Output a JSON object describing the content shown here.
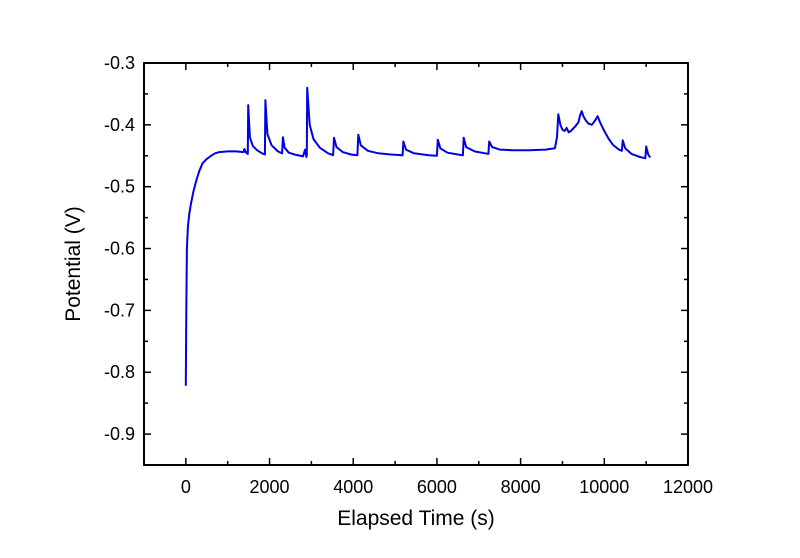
{
  "chart_data": {
    "type": "line",
    "title": "",
    "xlabel": "Elapsed Time (s)",
    "ylabel": "Potential (V)",
    "xlim": [
      -1000,
      12000
    ],
    "ylim": [
      -0.95,
      -0.3
    ],
    "x_ticks": [
      0,
      2000,
      4000,
      6000,
      8000,
      10000,
      12000
    ],
    "x_tick_labels": [
      "0",
      "2000",
      "4000",
      "6000",
      "8000",
      "10000",
      "12000"
    ],
    "y_ticks": [
      -0.3,
      -0.4,
      -0.5,
      -0.6,
      -0.7,
      -0.8,
      -0.9
    ],
    "y_tick_labels": [
      "-0.3",
      "-0.4",
      "-0.5",
      "-0.6",
      "-0.7",
      "-0.8",
      "-0.9"
    ],
    "grid": false,
    "series": [
      {
        "color": "#0000e0",
        "points": [
          [
            0,
            -0.822
          ],
          [
            10,
            -0.7
          ],
          [
            25,
            -0.6
          ],
          [
            50,
            -0.565
          ],
          [
            80,
            -0.545
          ],
          [
            120,
            -0.528
          ],
          [
            180,
            -0.508
          ],
          [
            250,
            -0.49
          ],
          [
            320,
            -0.475
          ],
          [
            400,
            -0.462
          ],
          [
            500,
            -0.455
          ],
          [
            600,
            -0.45
          ],
          [
            700,
            -0.446
          ],
          [
            800,
            -0.444
          ],
          [
            1000,
            -0.443
          ],
          [
            1200,
            -0.443
          ],
          [
            1380,
            -0.444
          ],
          [
            1400,
            -0.439
          ],
          [
            1440,
            -0.445
          ],
          [
            1480,
            -0.447
          ],
          [
            1490,
            -0.368
          ],
          [
            1530,
            -0.42
          ],
          [
            1600,
            -0.434
          ],
          [
            1700,
            -0.441
          ],
          [
            1820,
            -0.446
          ],
          [
            1890,
            -0.448
          ],
          [
            1900,
            -0.36
          ],
          [
            1950,
            -0.415
          ],
          [
            2050,
            -0.433
          ],
          [
            2200,
            -0.443
          ],
          [
            2300,
            -0.446
          ],
          [
            2320,
            -0.42
          ],
          [
            2360,
            -0.437
          ],
          [
            2460,
            -0.445
          ],
          [
            2600,
            -0.448
          ],
          [
            2800,
            -0.451
          ],
          [
            2850,
            -0.44
          ],
          [
            2880,
            -0.452
          ],
          [
            2890,
            -0.449
          ],
          [
            2900,
            -0.34
          ],
          [
            2960,
            -0.4
          ],
          [
            3050,
            -0.423
          ],
          [
            3200,
            -0.437
          ],
          [
            3400,
            -0.446
          ],
          [
            3520,
            -0.449
          ],
          [
            3540,
            -0.421
          ],
          [
            3600,
            -0.436
          ],
          [
            3750,
            -0.444
          ],
          [
            3950,
            -0.448
          ],
          [
            4100,
            -0.449
          ],
          [
            4120,
            -0.416
          ],
          [
            4180,
            -0.433
          ],
          [
            4350,
            -0.442
          ],
          [
            4600,
            -0.446
          ],
          [
            4900,
            -0.448
          ],
          [
            5180,
            -0.449
          ],
          [
            5200,
            -0.427
          ],
          [
            5260,
            -0.44
          ],
          [
            5450,
            -0.446
          ],
          [
            5800,
            -0.449
          ],
          [
            6000,
            -0.45
          ],
          [
            6020,
            -0.424
          ],
          [
            6080,
            -0.438
          ],
          [
            6250,
            -0.445
          ],
          [
            6500,
            -0.448
          ],
          [
            6620,
            -0.449
          ],
          [
            6640,
            -0.421
          ],
          [
            6700,
            -0.436
          ],
          [
            6900,
            -0.443
          ],
          [
            7150,
            -0.446
          ],
          [
            7230,
            -0.447
          ],
          [
            7250,
            -0.427
          ],
          [
            7320,
            -0.436
          ],
          [
            7500,
            -0.44
          ],
          [
            7800,
            -0.441
          ],
          [
            8200,
            -0.441
          ],
          [
            8600,
            -0.44
          ],
          [
            8820,
            -0.438
          ],
          [
            8870,
            -0.42
          ],
          [
            8900,
            -0.383
          ],
          [
            8950,
            -0.4
          ],
          [
            9000,
            -0.408
          ],
          [
            9050,
            -0.41
          ],
          [
            9100,
            -0.405
          ],
          [
            9150,
            -0.412
          ],
          [
            9200,
            -0.41
          ],
          [
            9300,
            -0.403
          ],
          [
            9380,
            -0.396
          ],
          [
            9420,
            -0.385
          ],
          [
            9460,
            -0.378
          ],
          [
            9500,
            -0.386
          ],
          [
            9560,
            -0.393
          ],
          [
            9620,
            -0.398
          ],
          [
            9700,
            -0.4
          ],
          [
            9780,
            -0.393
          ],
          [
            9840,
            -0.386
          ],
          [
            9900,
            -0.396
          ],
          [
            10000,
            -0.41
          ],
          [
            10100,
            -0.422
          ],
          [
            10200,
            -0.432
          ],
          [
            10350,
            -0.44
          ],
          [
            10420,
            -0.442
          ],
          [
            10440,
            -0.425
          ],
          [
            10500,
            -0.438
          ],
          [
            10650,
            -0.447
          ],
          [
            10850,
            -0.452
          ],
          [
            10980,
            -0.454
          ],
          [
            11000,
            -0.435
          ],
          [
            11050,
            -0.448
          ],
          [
            11100,
            -0.453
          ]
        ]
      }
    ]
  }
}
